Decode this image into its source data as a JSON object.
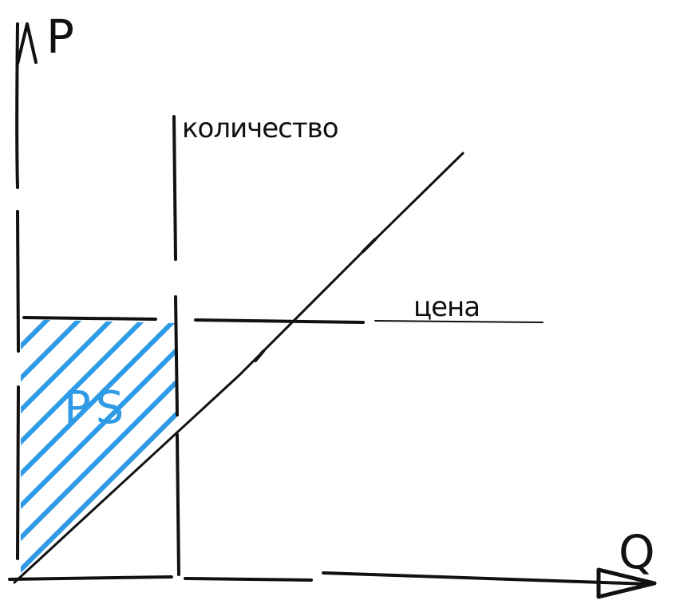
{
  "axes": {
    "y_label": "P",
    "x_label": "Q"
  },
  "labels": {
    "quantity": "количество",
    "price": "цена",
    "surplus": "PS"
  },
  "colors": {
    "ink": "#111111",
    "surplus_fill": "#2f9be6"
  }
}
